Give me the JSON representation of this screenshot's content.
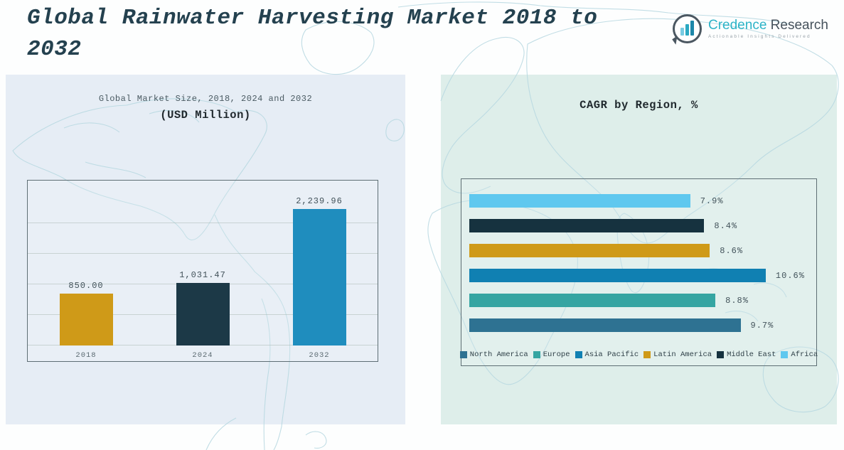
{
  "header": {
    "title_line1": "Global Rainwater Harvesting Market 2018 to",
    "title_line2": "2032",
    "logo": {
      "icon": "bar-chart-speech-bubble-icon",
      "brand_primary": "Credence",
      "brand_secondary": "Research",
      "tagline": "Actionable Insights Delivered"
    }
  },
  "left_panel": {
    "title_line1": "Global Market Size, 2018, 2024 and 2032",
    "title_line2": "(USD Million)"
  },
  "right_panel": {
    "title": "CAGR by Region, %"
  },
  "colors": {
    "title_text": "#24414f",
    "brand_teal": "#2cb3c7",
    "brand_gray": "#46525c",
    "panel_left_bg": "#e6edf5",
    "panel_right_bg": "#deeeea",
    "map_line": "#b7d8e1",
    "chart_border": "#5e6e74"
  },
  "chart_data": [
    {
      "type": "bar",
      "title": "Global Market Size, 2018, 2024 and 2032 (USD Million)",
      "categories": [
        "2018",
        "2024",
        "2032"
      ],
      "values": [
        850.0,
        1031.47,
        2239.96
      ],
      "value_labels": [
        "850.00",
        "1,031.47",
        "2,239.96"
      ],
      "bar_colors": [
        "#cf9a18",
        "#1c3947",
        "#1f8dbe"
      ],
      "ylabel": "USD Million",
      "ylim": [
        0,
        2500
      ],
      "grid": true,
      "gridline_step": 500
    },
    {
      "type": "bar-horizontal",
      "title": "CAGR by Region, %",
      "categories": [
        "Africa",
        "Middle East",
        "Latin America",
        "Asia Pacific",
        "Europe",
        "North America"
      ],
      "values": [
        7.9,
        8.4,
        8.6,
        10.6,
        8.8,
        9.7
      ],
      "value_labels": [
        "7.9%",
        "8.4%",
        "8.6%",
        "10.6%",
        "8.8%",
        "9.7%"
      ],
      "bar_colors": [
        "#5fc8ef",
        "#16323f",
        "#cf9a18",
        "#1080b2",
        "#35a5a2",
        "#2e7292"
      ],
      "xlim": [
        0,
        12
      ],
      "grid": false,
      "legend_position": "bottom",
      "legend": [
        {
          "label": "North America",
          "color": "#2e7292"
        },
        {
          "label": "Europe",
          "color": "#35a5a2"
        },
        {
          "label": "Asia Pacific",
          "color": "#1080b2"
        },
        {
          "label": "Latin America",
          "color": "#cf9a18"
        },
        {
          "label": "Middle East",
          "color": "#16323f"
        },
        {
          "label": "Africa",
          "color": "#5fc8ef"
        }
      ]
    }
  ]
}
